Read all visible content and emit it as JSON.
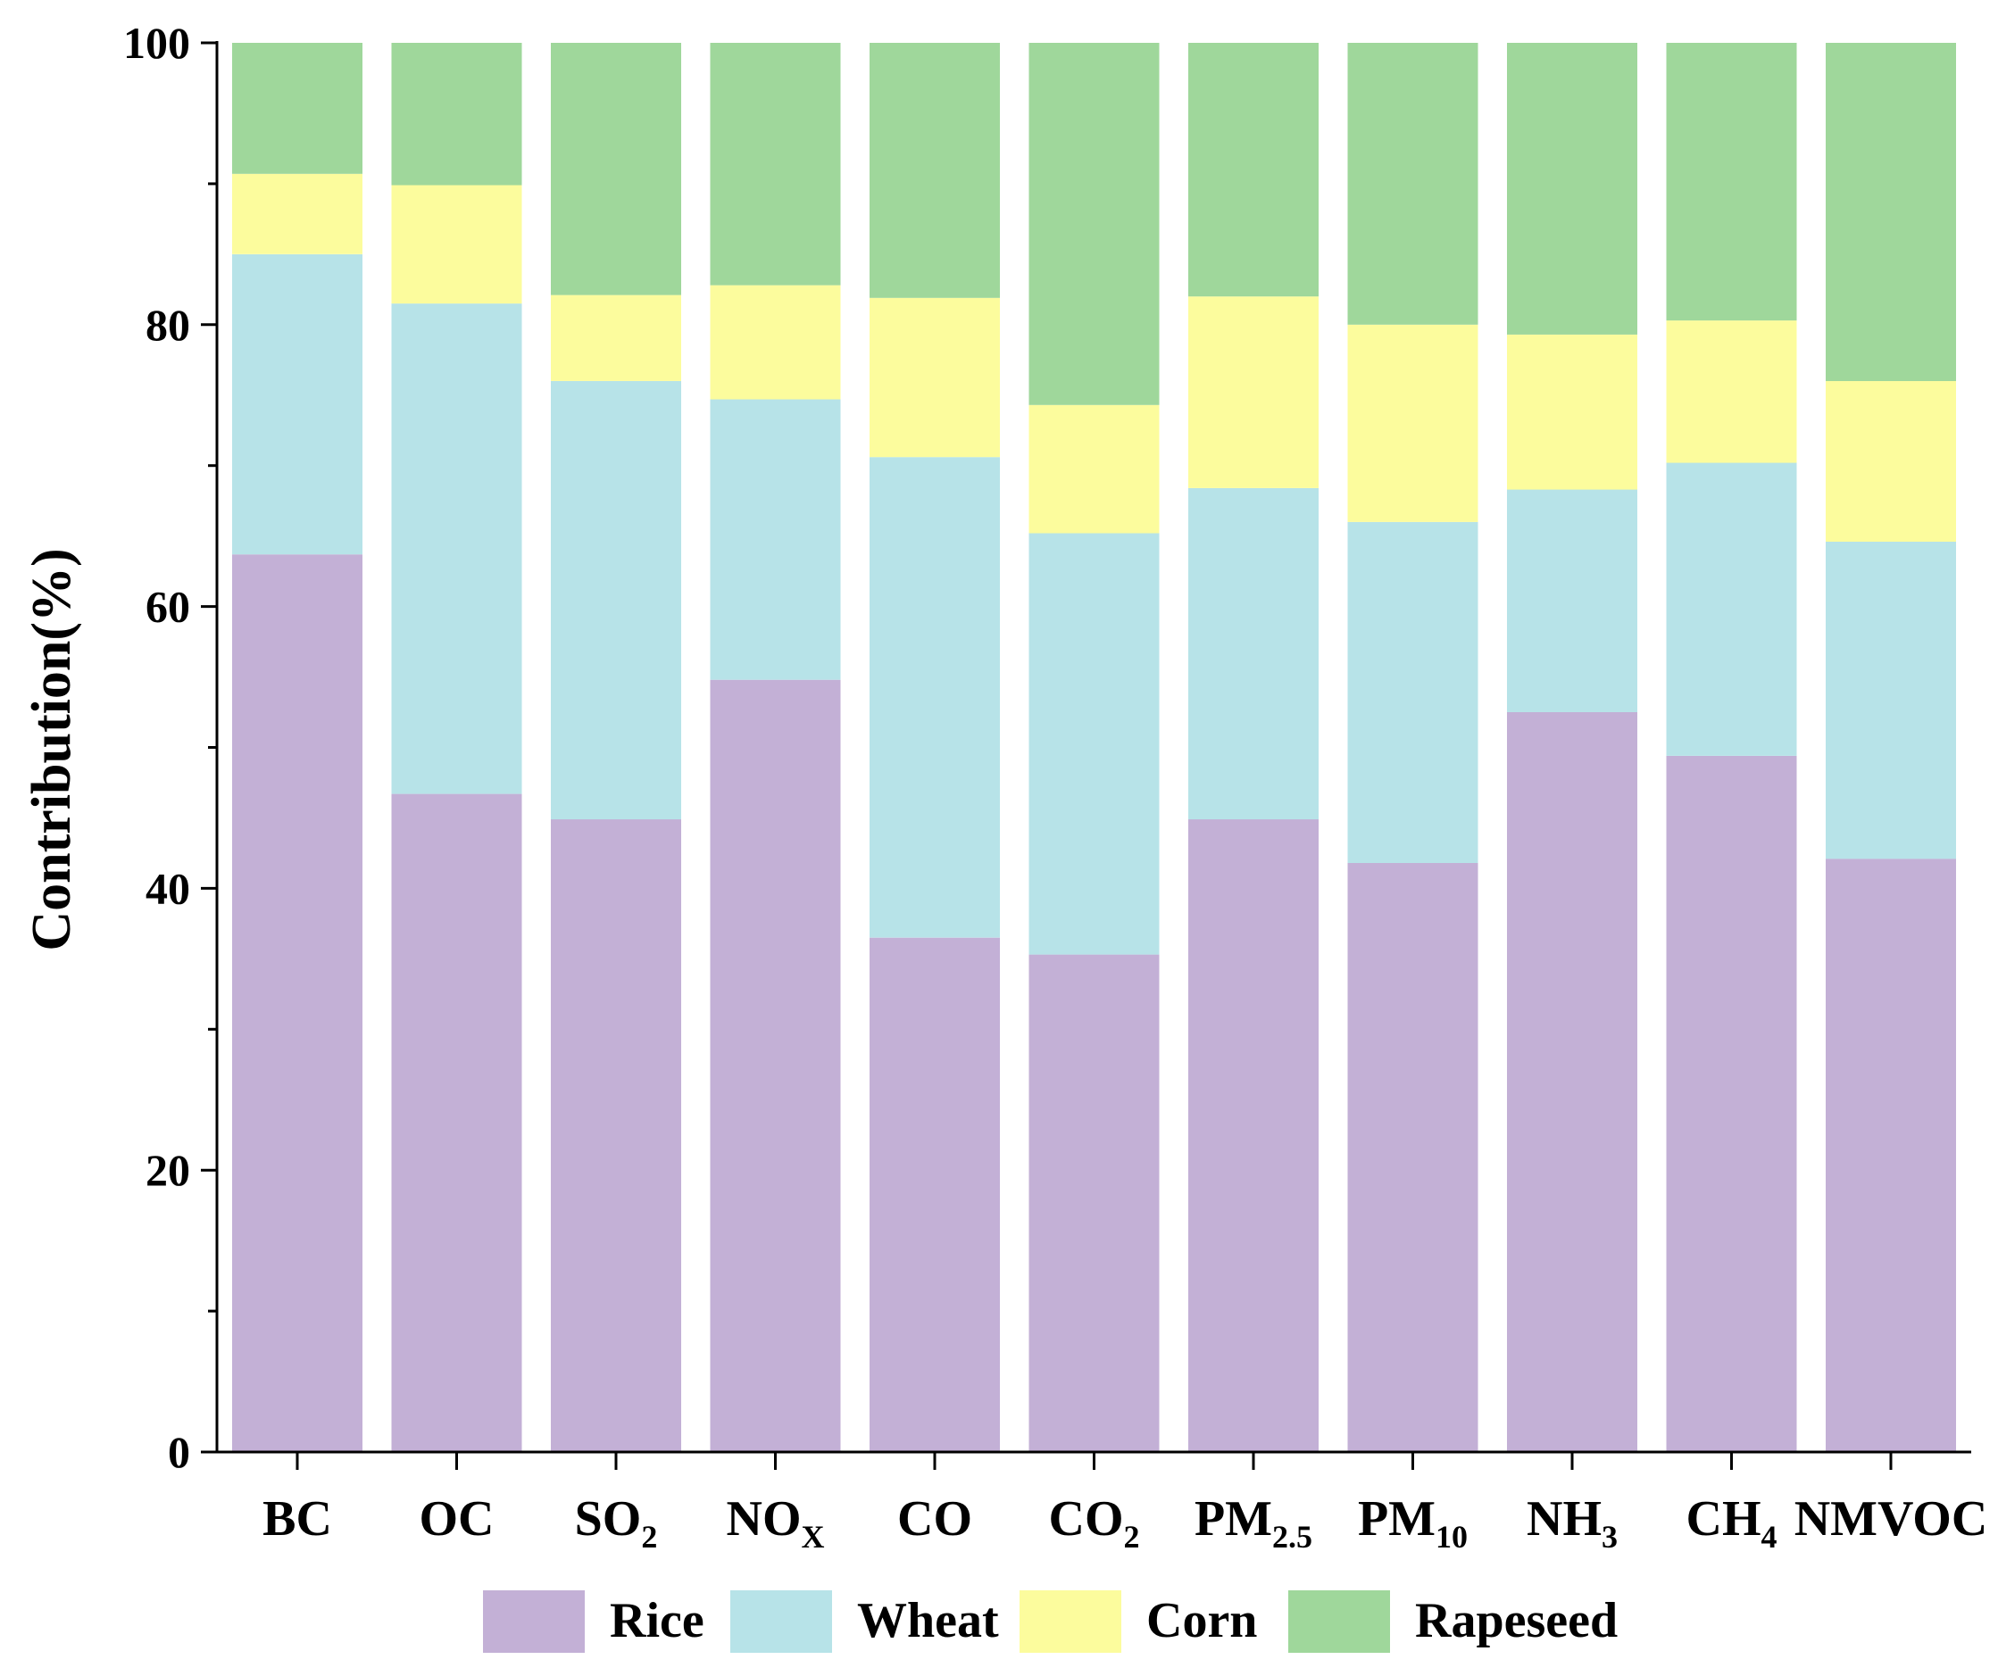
{
  "chart_data": {
    "type": "bar",
    "stacked": true,
    "title": "",
    "xlabel": "",
    "ylabel": "Contribution(%)",
    "ylim": [
      0,
      100
    ],
    "yticks": [
      0,
      20,
      40,
      60,
      80,
      100
    ],
    "categories": [
      {
        "main": "BC",
        "sub": ""
      },
      {
        "main": "OC",
        "sub": ""
      },
      {
        "main": "SO",
        "sub": "2"
      },
      {
        "main": "NO",
        "sub": "X"
      },
      {
        "main": "CO",
        "sub": ""
      },
      {
        "main": "CO",
        "sub": "2"
      },
      {
        "main": "PM",
        "sub": "2.5"
      },
      {
        "main": "PM",
        "sub": "10"
      },
      {
        "main": "NH",
        "sub": "3"
      },
      {
        "main": "CH",
        "sub": "4"
      },
      {
        "main": "NMVOC",
        "sub": ""
      }
    ],
    "series": [
      {
        "name": "Rice",
        "color": "#c3b0d6",
        "values": [
          63.7,
          46.7,
          44.9,
          54.8,
          36.5,
          35.3,
          44.9,
          41.8,
          52.5,
          49.4,
          42.1
        ]
      },
      {
        "name": "Wheat",
        "color": "#b7e3e8",
        "values": [
          21.3,
          34.8,
          31.1,
          19.9,
          34.1,
          29.9,
          23.5,
          24.2,
          15.8,
          20.8,
          22.5
        ]
      },
      {
        "name": "Corn",
        "color": "#fcfc9d",
        "values": [
          5.7,
          8.4,
          6.1,
          8.1,
          11.3,
          9.1,
          13.6,
          14.0,
          11.0,
          10.1,
          11.4
        ]
      },
      {
        "name": "Rapeseed",
        "color": "#9fd79b",
        "values": [
          9.3,
          10.1,
          17.9,
          17.2,
          18.1,
          25.7,
          18.0,
          20.0,
          20.7,
          19.7,
          24.0
        ]
      }
    ],
    "legend_position": "bottom"
  }
}
